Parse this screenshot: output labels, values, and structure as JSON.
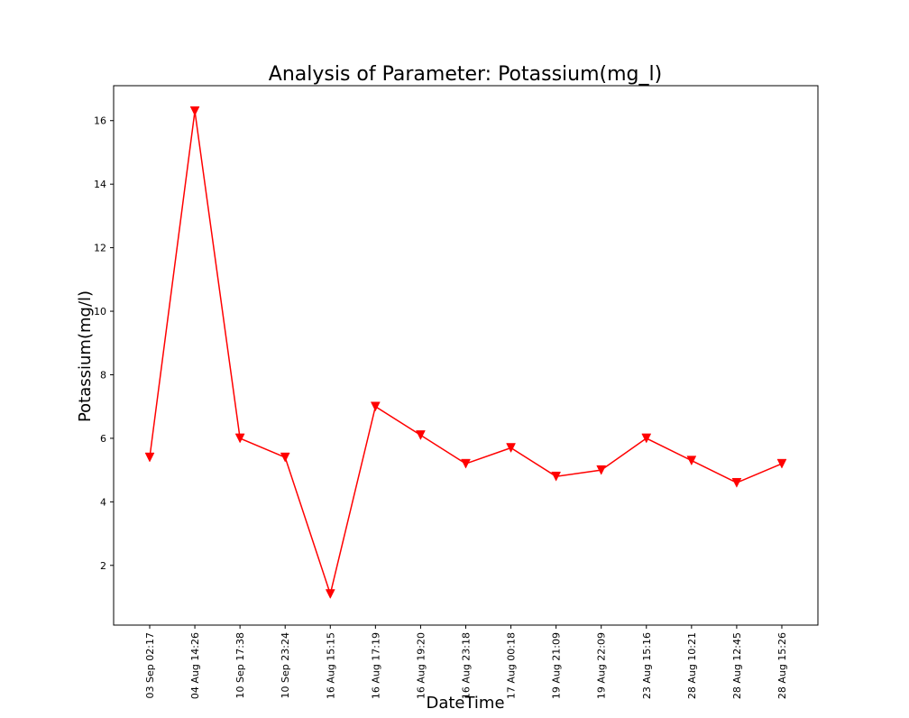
{
  "chart_data": {
    "type": "line",
    "title": "Analysis of Parameter: Potassium(mg_l)",
    "xlabel": "DateTime",
    "ylabel": "Potassium(mg/l)",
    "categories": [
      "03 Sep 02:17",
      "04 Aug 14:26",
      "10 Sep 17:38",
      "10 Sep 23:24",
      "16 Aug 15:15",
      "16 Aug 17:19",
      "16 Aug 19:20",
      "16 Aug 23:18",
      "17 Aug 00:18",
      "19 Aug 21:09",
      "19 Aug 22:09",
      "23 Aug 15:16",
      "28 Aug 10:21",
      "28 Aug 12:45",
      "28 Aug 15:26"
    ],
    "series": [
      {
        "values": [
          5.4,
          16.3,
          6.0,
          5.4,
          1.1,
          7.0,
          6.1,
          5.2,
          5.7,
          4.8,
          5.0,
          6.0,
          5.3,
          4.6,
          5.2
        ],
        "color": "#ff0000",
        "marker": "triangle-down"
      }
    ],
    "yticks": [
      2,
      4,
      6,
      8,
      10,
      12,
      14,
      16
    ],
    "ylim": [
      0.12,
      17.1
    ],
    "grid": false,
    "legend": "none"
  }
}
